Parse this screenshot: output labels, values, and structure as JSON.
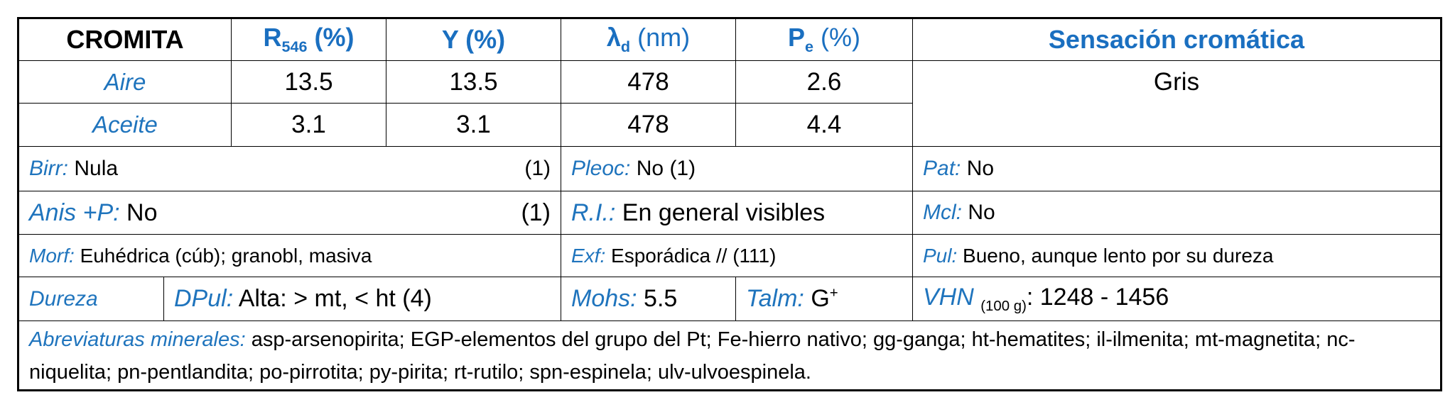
{
  "header": {
    "mineral": "CROMITA",
    "reflectance": {
      "symbol": "R",
      "sub": "546",
      "unit": " (%)"
    },
    "y": "Y (%)",
    "lambda": {
      "symbol": "λ",
      "sub": "d",
      "unit": " (nm)"
    },
    "pe": {
      "symbol": "P",
      "sub": "e",
      "unit": " (%)"
    },
    "sensation": "Sensación cromática"
  },
  "rows": [
    {
      "medium": "Aire",
      "r": 13.5,
      "y": 13.5,
      "lambda": 478,
      "pe": 2.6
    },
    {
      "medium": "Aceite",
      "r": 3.1,
      "y": 3.1,
      "lambda": 478,
      "pe": 4.4
    }
  ],
  "sensation_value": "Gris",
  "properties": {
    "birr": {
      "label": "Birr:",
      "value": "Nula",
      "ref": "(1)"
    },
    "pleoc": {
      "label": "Pleoc:",
      "value": "No",
      "ref": "(1)"
    },
    "pat": {
      "label": "Pat:",
      "value": "No"
    },
    "anis": {
      "label": "Anis +P:",
      "value": "No",
      "ref": "(1)"
    },
    "ri": {
      "label": "R.I.:",
      "value": "En general visibles"
    },
    "mcl": {
      "label": "Mcl:",
      "value": "No"
    },
    "morf": {
      "label": "Morf:",
      "value": "Euhédrica (cúb); granobl, masiva"
    },
    "exf": {
      "label": "Exf:",
      "value": "Esporádica // (111)"
    },
    "pul": {
      "label": "Pul:",
      "value": "Bueno, aunque lento por su dureza"
    },
    "dureza": "Dureza",
    "dpul": {
      "label": "DPul:",
      "value": "Alta: > mt, < ht",
      "ref": "(4)"
    },
    "mohs": {
      "label": "Mohs:",
      "value": 5.5
    },
    "talm": {
      "label": "Talm:",
      "value": "G",
      "sup": "+"
    },
    "vhn": {
      "label": "VHN",
      "sub": "(100 g)",
      "sep": ":",
      "value": "1248 - 1456"
    }
  },
  "abbreviations": {
    "label": "Abreviaturas minerales:",
    "text": "asp-arsenopirita; EGP-elementos del grupo del Pt; Fe-hierro nativo; gg-ganga; ht-hematites; il-ilmenita; mt-magnetita; nc-niquelita; pn-pentlandita; po-pirrotita; py-pirita; rt-rutilo; spn-espinela; ulv-ulvoespinela."
  }
}
